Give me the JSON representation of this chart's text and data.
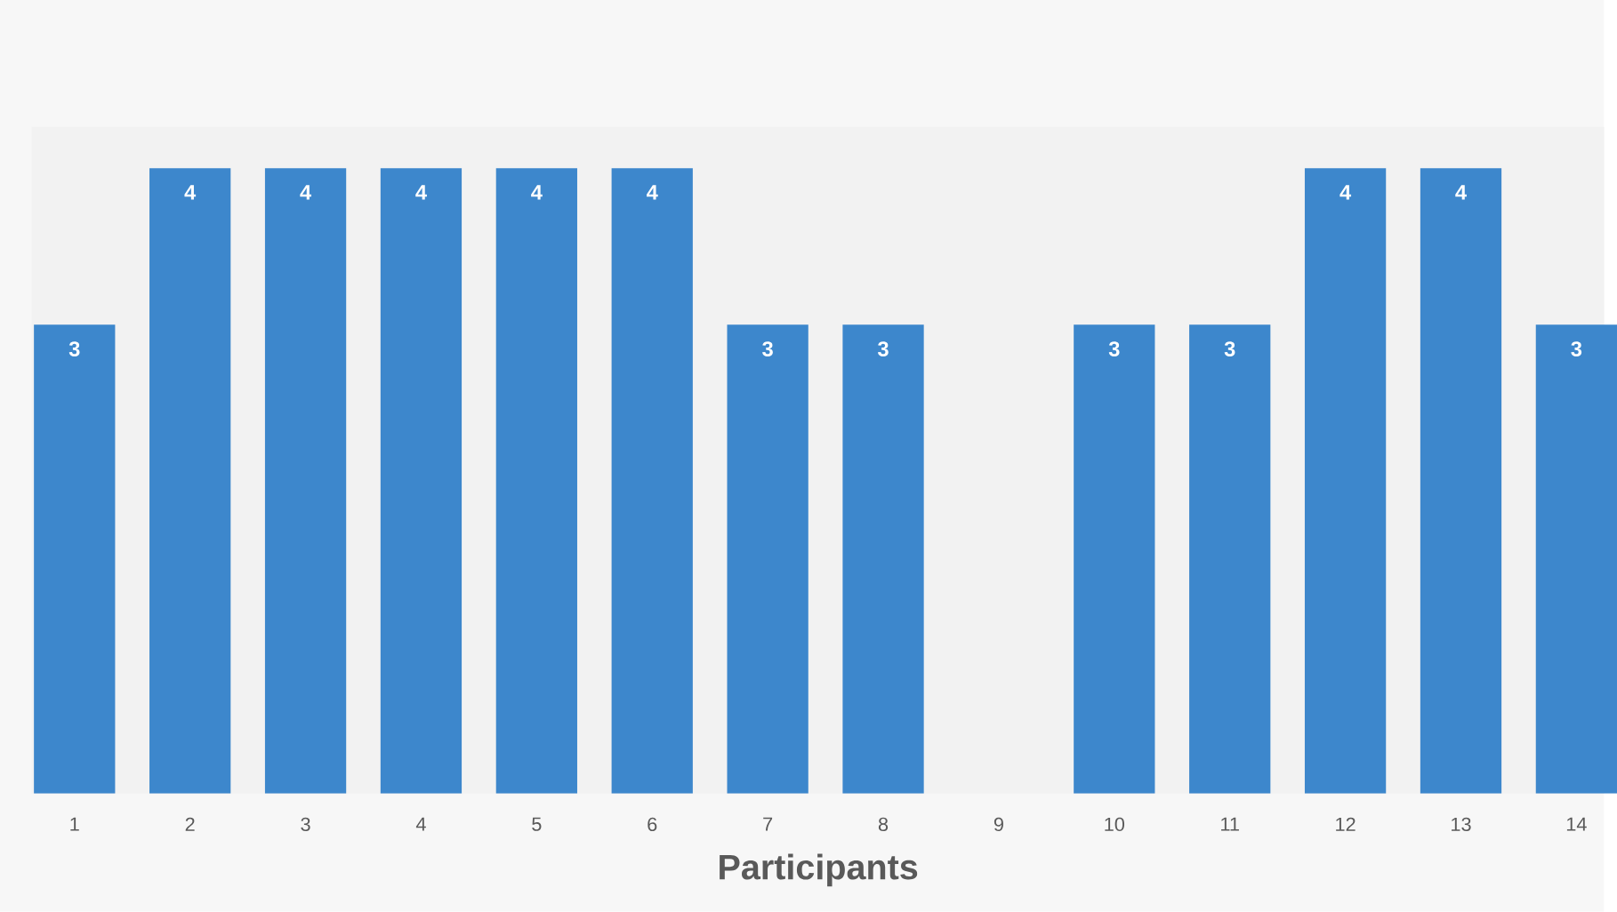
{
  "chart_data": {
    "type": "bar",
    "xlabel": "Participants",
    "categories": [
      "1",
      "2",
      "3",
      "4",
      "5",
      "6",
      "7",
      "8",
      "9",
      "10",
      "11",
      "12",
      "13",
      "14"
    ],
    "values": [
      3,
      4,
      4,
      4,
      4,
      4,
      3,
      3,
      0,
      3,
      3,
      4,
      4,
      3
    ],
    "value_labels": [
      "3",
      "4",
      "4",
      "4",
      "4",
      "4",
      "3",
      "3",
      null,
      "3",
      "3",
      "4",
      "4",
      "3"
    ],
    "color": "#3d87cc"
  }
}
